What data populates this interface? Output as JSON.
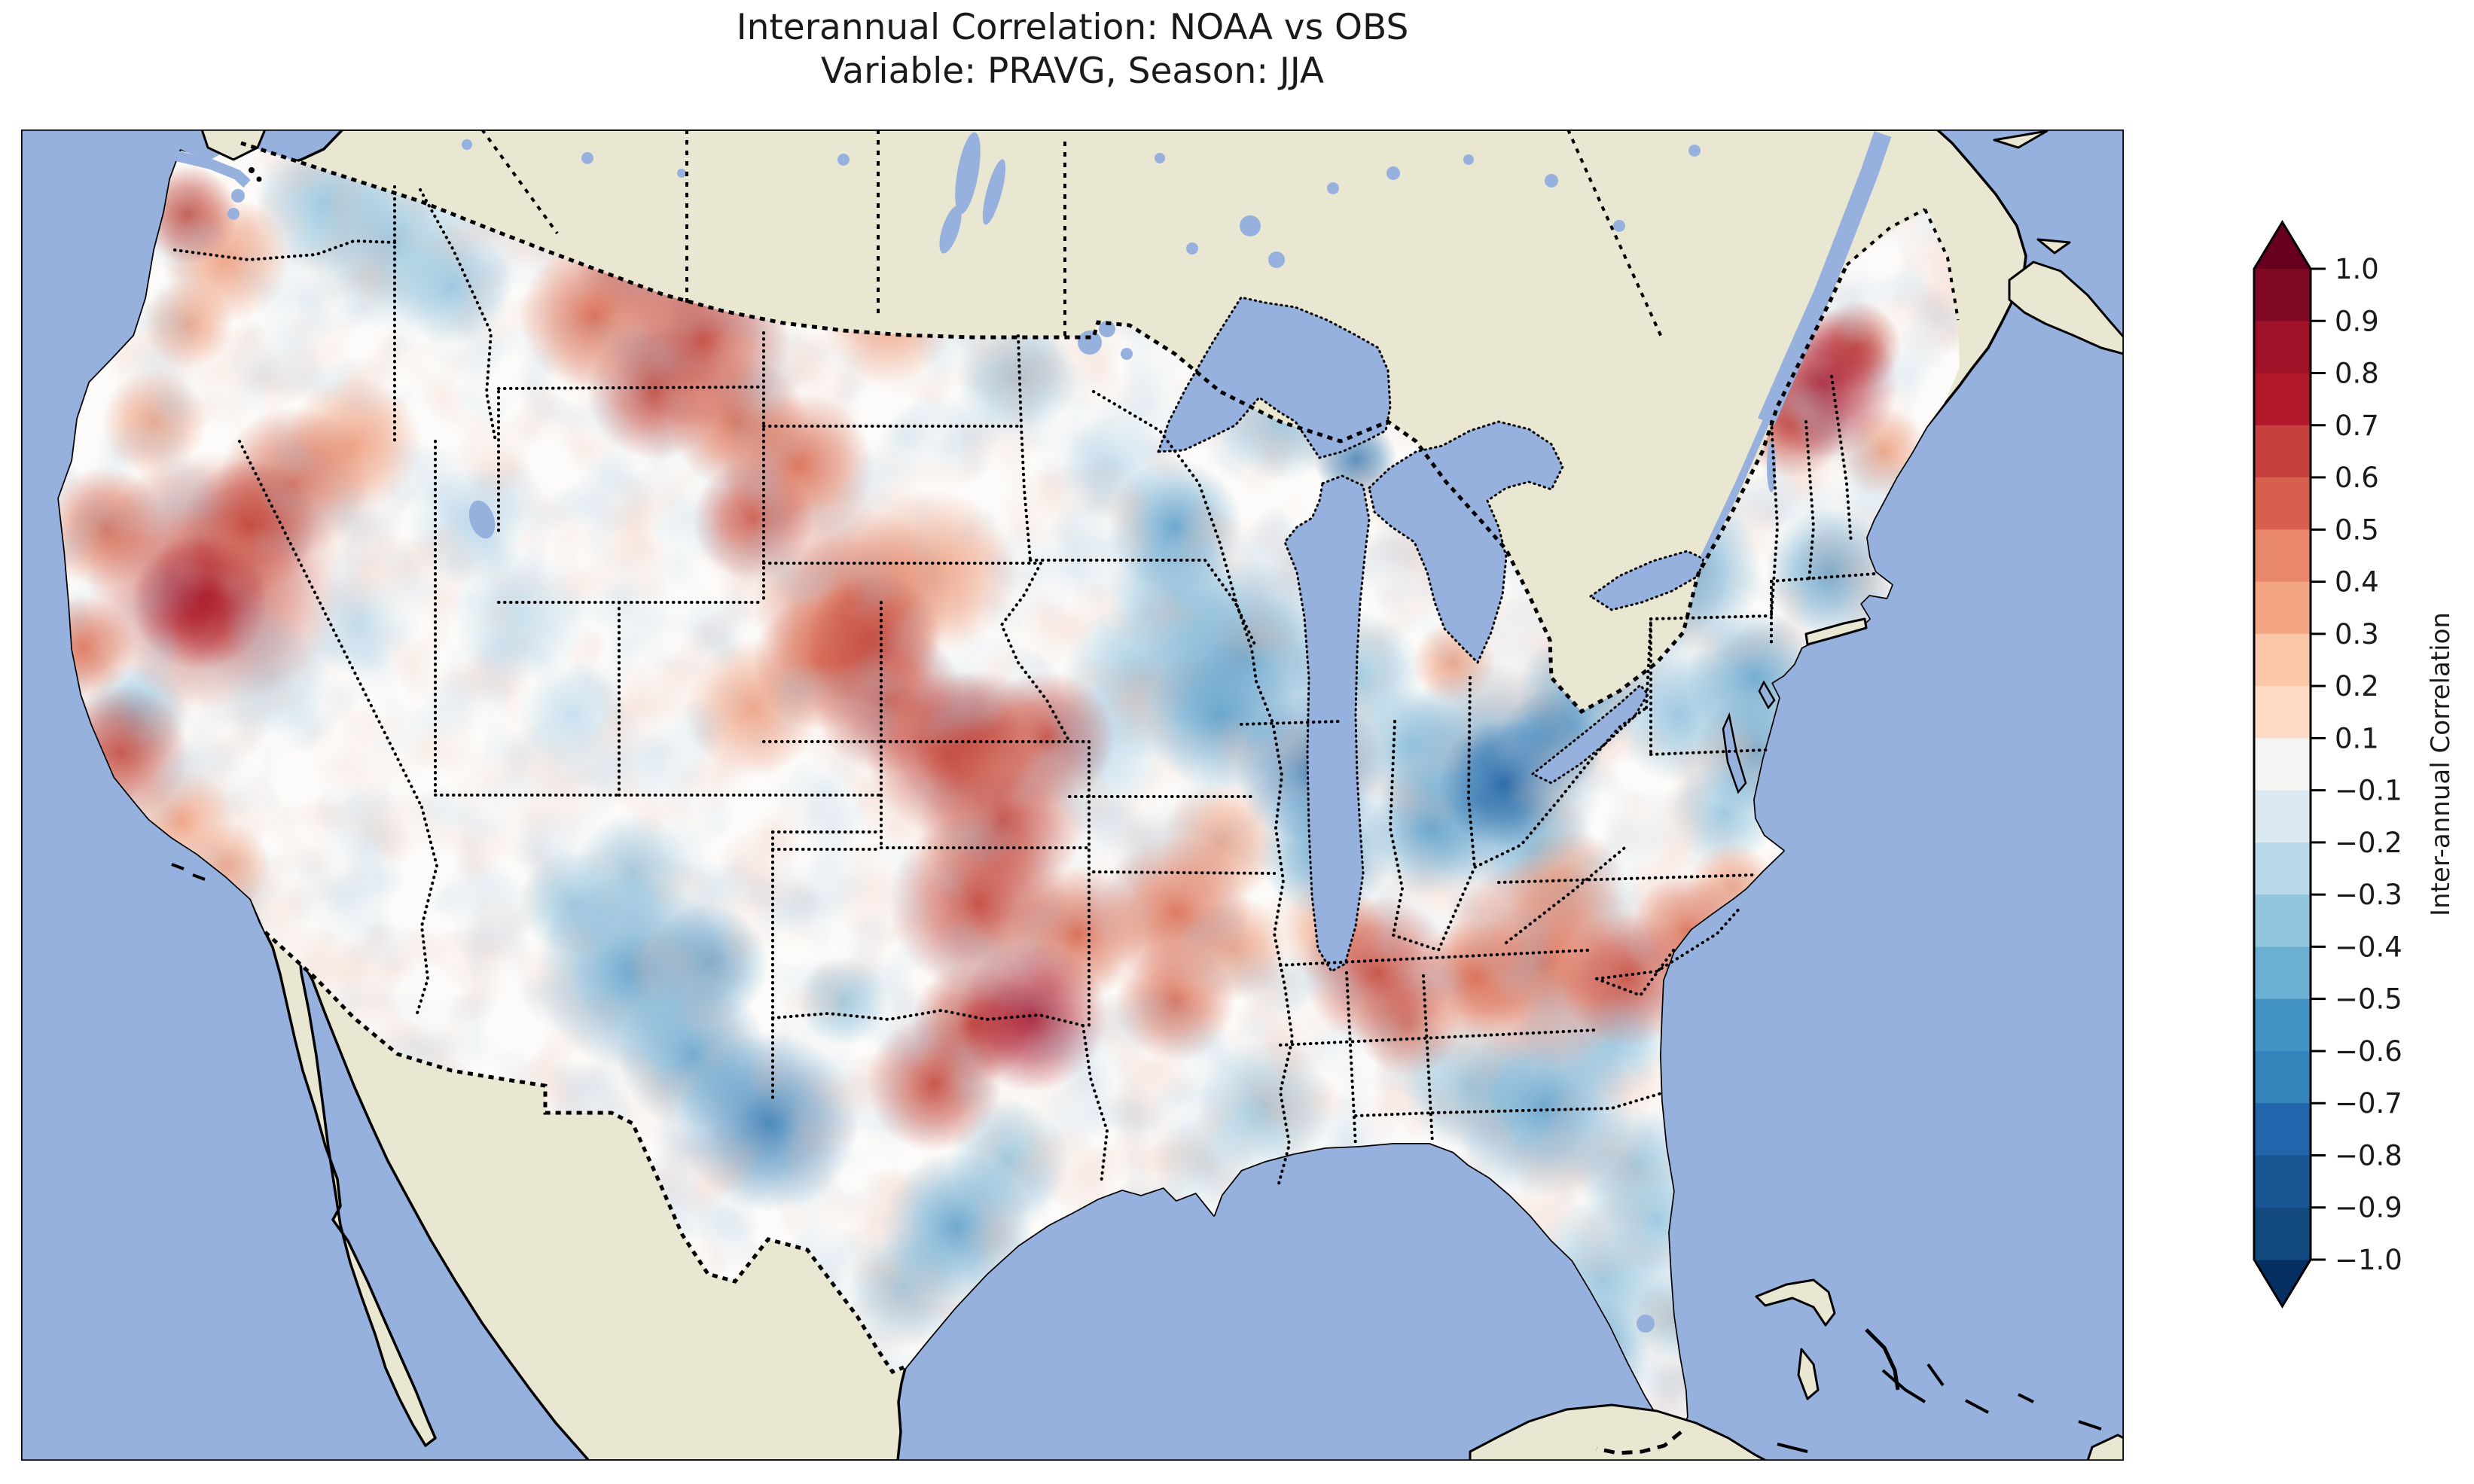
{
  "figure": {
    "title_line1": "Interannual Correlation: NOAA vs OBS",
    "title_line2": "Variable: PRAVG, Season: JJA",
    "background": "#ffffff"
  },
  "map": {
    "ocean_color": "#97b1de",
    "land_color": "#e9e7d2",
    "lake_color": "#97b1de",
    "coast_color": "#000000",
    "frame_color": "#000000"
  },
  "colorbar": {
    "label": "Inter-annual Correlation",
    "ticks": [
      "1.0",
      "0.9",
      "0.8",
      "0.7",
      "0.6",
      "0.5",
      "0.4",
      "0.3",
      "0.2",
      "0.1",
      "−0.1",
      "−0.2",
      "−0.3",
      "−0.4",
      "−0.5",
      "−0.6",
      "−0.7",
      "−0.8",
      "−0.9",
      "−1.0"
    ],
    "tick_values": [
      1.0,
      0.9,
      0.8,
      0.7,
      0.6,
      0.5,
      0.4,
      0.3,
      0.2,
      0.1,
      -0.1,
      -0.2,
      -0.3,
      -0.4,
      -0.5,
      -0.6,
      -0.7,
      -0.8,
      -0.9,
      -1.0
    ],
    "over_color": "#67001f",
    "under_color": "#053061",
    "band_colors": [
      "#7f0823",
      "#9e1126",
      "#b2182b",
      "#c6413e",
      "#d6604d",
      "#e8876c",
      "#f4a582",
      "#fbc7a9",
      "#fddbc7",
      "#f4f4f3",
      "#dbeaf2",
      "#b9d9ea",
      "#92c5de",
      "#6bafd2",
      "#4393c3",
      "#3583bb",
      "#2166ac",
      "#1a5694",
      "#124a80"
    ],
    "vmin": -1.0,
    "vmax": 1.0
  },
  "chart_data": {
    "type": "heatmap",
    "title": "Interannual Correlation: NOAA vs OBS",
    "subtitle": "Variable: PRAVG, Season: JJA",
    "variable": "PRAVG",
    "season": "JJA",
    "datasets_compared": [
      "NOAA",
      "OBS"
    ],
    "value_label": "Inter-annual Correlation",
    "value_range": [
      -1.0,
      1.0
    ],
    "contour_interval": 0.1,
    "colormap": "RdBu_r (red = positive, blue = negative)",
    "blob_palette": {
      "red": [
        "#f7c9ae",
        "#efa284",
        "#d96b52",
        "#c44a3f",
        "#a81226"
      ],
      "blue": [
        "#c6dfee",
        "#9cc8e0",
        "#67a5cd",
        "#3d83bb",
        "#2264a5"
      ]
    },
    "field_regions": [
      [
        250,
        285,
        65,
        0.55
      ],
      [
        300,
        345,
        85,
        0.4
      ],
      [
        250,
        430,
        60,
        0.3
      ],
      [
        430,
        270,
        90,
        -0.35
      ],
      [
        520,
        320,
        120,
        -0.38
      ],
      [
        600,
        380,
        80,
        -0.3
      ],
      [
        205,
        560,
        70,
        0.35
      ],
      [
        140,
        700,
        80,
        0.45
      ],
      [
        110,
        860,
        70,
        0.5
      ],
      [
        160,
        1000,
        90,
        0.55
      ],
      [
        240,
        1090,
        70,
        0.35
      ],
      [
        300,
        1150,
        60,
        0.35
      ],
      [
        285,
        770,
        170,
        0.62
      ],
      [
        265,
        800,
        90,
        0.78
      ],
      [
        330,
        700,
        90,
        0.55
      ],
      [
        390,
        640,
        100,
        0.45
      ],
      [
        470,
        590,
        90,
        0.35
      ],
      [
        180,
        950,
        70,
        -0.32
      ],
      [
        360,
        900,
        80,
        -0.28
      ],
      [
        475,
        830,
        70,
        -0.28
      ],
      [
        620,
        700,
        80,
        -0.25
      ],
      [
        690,
        820,
        90,
        -0.22
      ],
      [
        760,
        950,
        70,
        -0.22
      ],
      [
        790,
        420,
        100,
        0.5
      ],
      [
        870,
        330,
        110,
        0.68
      ],
      [
        930,
        450,
        120,
        0.68
      ],
      [
        870,
        520,
        90,
        0.55
      ],
      [
        980,
        560,
        90,
        0.45
      ],
      [
        1000,
        690,
        80,
        0.68
      ],
      [
        1060,
        620,
        100,
        0.5
      ],
      [
        1160,
        230,
        80,
        0.55
      ],
      [
        1100,
        330,
        100,
        0.45
      ],
      [
        1180,
        420,
        90,
        0.35
      ],
      [
        1350,
        500,
        80,
        -0.3
      ],
      [
        1560,
        700,
        90,
        -0.45
      ],
      [
        1480,
        620,
        70,
        -0.25
      ],
      [
        1240,
        760,
        110,
        0.35
      ],
      [
        1130,
        800,
        130,
        0.45
      ],
      [
        1160,
        850,
        90,
        0.65
      ],
      [
        1180,
        930,
        100,
        0.62
      ],
      [
        1090,
        880,
        90,
        0.5
      ],
      [
        1260,
        1000,
        110,
        0.55
      ],
      [
        1300,
        980,
        90,
        0.6
      ],
      [
        1000,
        940,
        90,
        0.35
      ],
      [
        1330,
        1090,
        110,
        0.6
      ],
      [
        1390,
        980,
        90,
        0.65
      ],
      [
        1300,
        1200,
        120,
        0.55
      ],
      [
        1370,
        1350,
        100,
        0.8
      ],
      [
        1290,
        1360,
        80,
        0.7
      ],
      [
        1240,
        1440,
        90,
        0.55
      ],
      [
        1430,
        1240,
        90,
        0.5
      ],
      [
        840,
        1160,
        80,
        -0.35
      ],
      [
        840,
        1290,
        130,
        -0.5
      ],
      [
        920,
        1400,
        100,
        -0.5
      ],
      [
        1020,
        1490,
        120,
        -0.55
      ],
      [
        940,
        1280,
        80,
        -0.5
      ],
      [
        760,
        1200,
        70,
        -0.35
      ],
      [
        1120,
        1330,
        60,
        -0.4
      ],
      [
        1270,
        1630,
        100,
        -0.42
      ],
      [
        1200,
        1710,
        80,
        -0.38
      ],
      [
        1340,
        1540,
        80,
        -0.3
      ],
      [
        1520,
        900,
        110,
        -0.3
      ],
      [
        1460,
        1000,
        90,
        -0.25
      ],
      [
        1560,
        1210,
        100,
        0.52
      ],
      [
        1620,
        1120,
        80,
        0.4
      ],
      [
        1560,
        1330,
        80,
        0.45
      ],
      [
        1640,
        1260,
        70,
        0.35
      ],
      [
        1680,
        1470,
        90,
        -0.32
      ],
      [
        1600,
        1540,
        70,
        -0.28
      ],
      [
        1830,
        1290,
        100,
        0.55
      ],
      [
        1870,
        1360,
        70,
        0.45
      ],
      [
        1770,
        1240,
        70,
        0.4
      ],
      [
        1950,
        1440,
        90,
        -0.35
      ],
      [
        2050,
        1470,
        120,
        -0.42
      ],
      [
        2140,
        1390,
        70,
        -0.3
      ],
      [
        1800,
        610,
        55,
        -0.7
      ],
      [
        1700,
        560,
        80,
        -0.4
      ],
      [
        1650,
        870,
        130,
        -0.45
      ],
      [
        1740,
        1020,
        100,
        -0.6
      ],
      [
        1620,
        950,
        100,
        -0.45
      ],
      [
        1560,
        790,
        90,
        -0.35
      ],
      [
        1800,
        900,
        90,
        -0.4
      ],
      [
        1760,
        1130,
        90,
        -0.45
      ],
      [
        1930,
        880,
        55,
        0.4
      ],
      [
        1980,
        1030,
        150,
        -0.5
      ],
      [
        1995,
        1040,
        85,
        -0.8
      ],
      [
        2060,
        985,
        70,
        -0.7
      ],
      [
        1900,
        1100,
        90,
        -0.45
      ],
      [
        2100,
        920,
        85,
        -0.45
      ],
      [
        1870,
        990,
        80,
        -0.4
      ],
      [
        2040,
        1130,
        80,
        -0.4
      ],
      [
        2230,
        760,
        110,
        -0.45
      ],
      [
        2150,
        830,
        90,
        -0.4
      ],
      [
        2330,
        900,
        90,
        -0.5
      ],
      [
        2330,
        1000,
        80,
        -0.5
      ],
      [
        2430,
        760,
        85,
        -0.45
      ],
      [
        2290,
        1080,
        70,
        -0.35
      ],
      [
        2230,
        950,
        90,
        -0.4
      ],
      [
        2420,
        510,
        100,
        0.78
      ],
      [
        2380,
        560,
        75,
        0.6
      ],
      [
        2465,
        460,
        60,
        0.6
      ],
      [
        2500,
        600,
        60,
        0.4
      ],
      [
        2080,
        1180,
        80,
        0.4
      ],
      [
        2050,
        1280,
        140,
        0.45
      ],
      [
        2160,
        1300,
        90,
        0.55
      ],
      [
        1960,
        1300,
        80,
        0.5
      ],
      [
        2240,
        1235,
        75,
        0.5
      ],
      [
        2300,
        1180,
        60,
        0.4
      ],
      [
        2130,
        1700,
        110,
        -0.4
      ],
      [
        2200,
        1620,
        70,
        -0.35
      ],
      [
        2110,
        1800,
        80,
        -0.45
      ],
      [
        2230,
        1750,
        60,
        -0.4
      ],
      [
        2170,
        1550,
        80,
        -0.3
      ]
    ],
    "canada_lakes": [
      [
        1285,
        230,
        14,
        55,
        10
      ],
      [
        1320,
        255,
        10,
        45,
        15
      ],
      [
        1262,
        305,
        11,
        33,
        18
      ],
      [
        1447,
        455,
        16
      ],
      [
        1470,
        437,
        11
      ],
      [
        1496,
        470,
        8
      ],
      [
        1660,
        300,
        14
      ],
      [
        1695,
        345,
        11
      ],
      [
        1583,
        330,
        8
      ],
      [
        1770,
        250,
        8
      ],
      [
        1850,
        230,
        9
      ],
      [
        1950,
        212,
        7
      ],
      [
        2060,
        240,
        9
      ],
      [
        2150,
        300,
        8
      ],
      [
        2250,
        200,
        8
      ],
      [
        1540,
        210,
        7
      ],
      [
        1120,
        212,
        8
      ],
      [
        905,
        230,
        6
      ],
      [
        780,
        210,
        8
      ],
      [
        620,
        192,
        7
      ]
    ]
  }
}
